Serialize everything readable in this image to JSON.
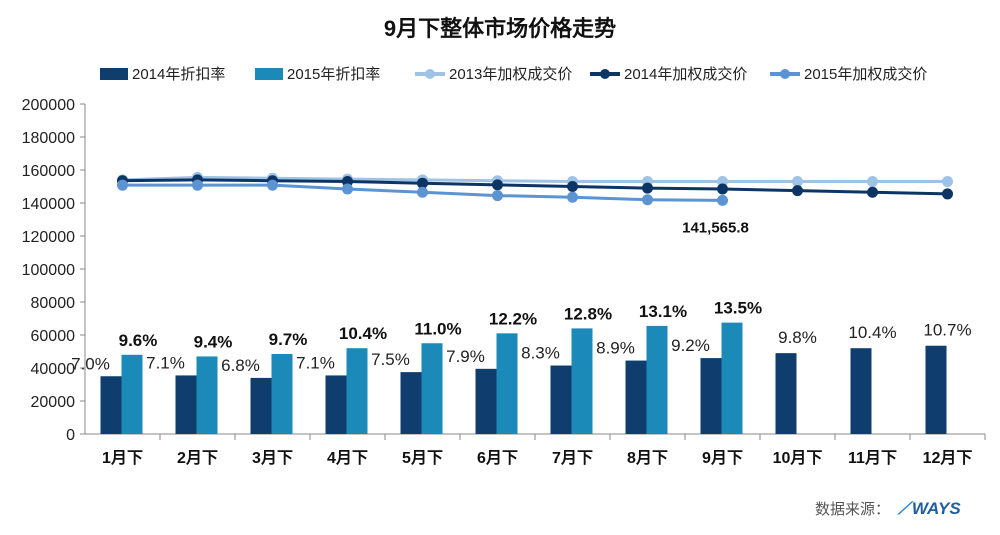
{
  "chart_data": {
    "type": "bar",
    "title": "9月下整体市场价格走势",
    "categories": [
      "1月下",
      "2月下",
      "3月下",
      "4月下",
      "5月下",
      "6月下",
      "7月下",
      "8月下",
      "9月下",
      "10月下",
      "11月下",
      "12月下"
    ],
    "ylim": [
      0,
      200000
    ],
    "yticks": [
      "0",
      "20000",
      "40000",
      "60000",
      "80000",
      "100000",
      "120000",
      "140000",
      "160000",
      "180000",
      "200000"
    ],
    "legend_position": "top",
    "bar_series": [
      {
        "name": "2014年折扣率",
        "color": "#0f3d6e",
        "values": [
          35000,
          35500,
          34000,
          35500,
          37500,
          39500,
          41500,
          44500,
          46000,
          49000,
          52000,
          53500
        ],
        "labels": [
          "7.0%",
          "7.1%",
          "6.8%",
          "7.1%",
          "7.5%",
          "7.9%",
          "8.3%",
          "8.9%",
          "9.2%",
          "9.8%",
          "10.4%",
          "10.7%"
        ]
      },
      {
        "name": "2015年折扣率",
        "color": "#1b8ab8",
        "values": [
          48000,
          47000,
          48500,
          52000,
          55000,
          61000,
          64000,
          65500,
          67500,
          null,
          null,
          null
        ],
        "labels": [
          "9.6%",
          "9.4%",
          "9.7%",
          "10.4%",
          "11.0%",
          "12.2%",
          "12.8%",
          "13.1%",
          "13.5%",
          null,
          null,
          null
        ]
      }
    ],
    "line_series": [
      {
        "name": "2013年加权成交价",
        "color": "#9fc3e6",
        "values": [
          154000,
          155500,
          155000,
          154500,
          154000,
          153500,
          153000,
          153000,
          153000,
          153000,
          153000,
          153000
        ]
      },
      {
        "name": "2014年加权成交价",
        "color": "#0c3565",
        "values": [
          153500,
          154000,
          153500,
          153000,
          152000,
          151000,
          150000,
          149000,
          148500,
          147500,
          146500,
          145500
        ]
      },
      {
        "name": "2015年加权成交价",
        "color": "#5b93d3",
        "values": [
          150800,
          150800,
          150800,
          148500,
          146500,
          144500,
          143500,
          142000,
          141565.8,
          null,
          null,
          null
        ]
      }
    ],
    "annotation": "141,565.8"
  },
  "source_label": "数据来源：",
  "logo_text": "WAYS"
}
